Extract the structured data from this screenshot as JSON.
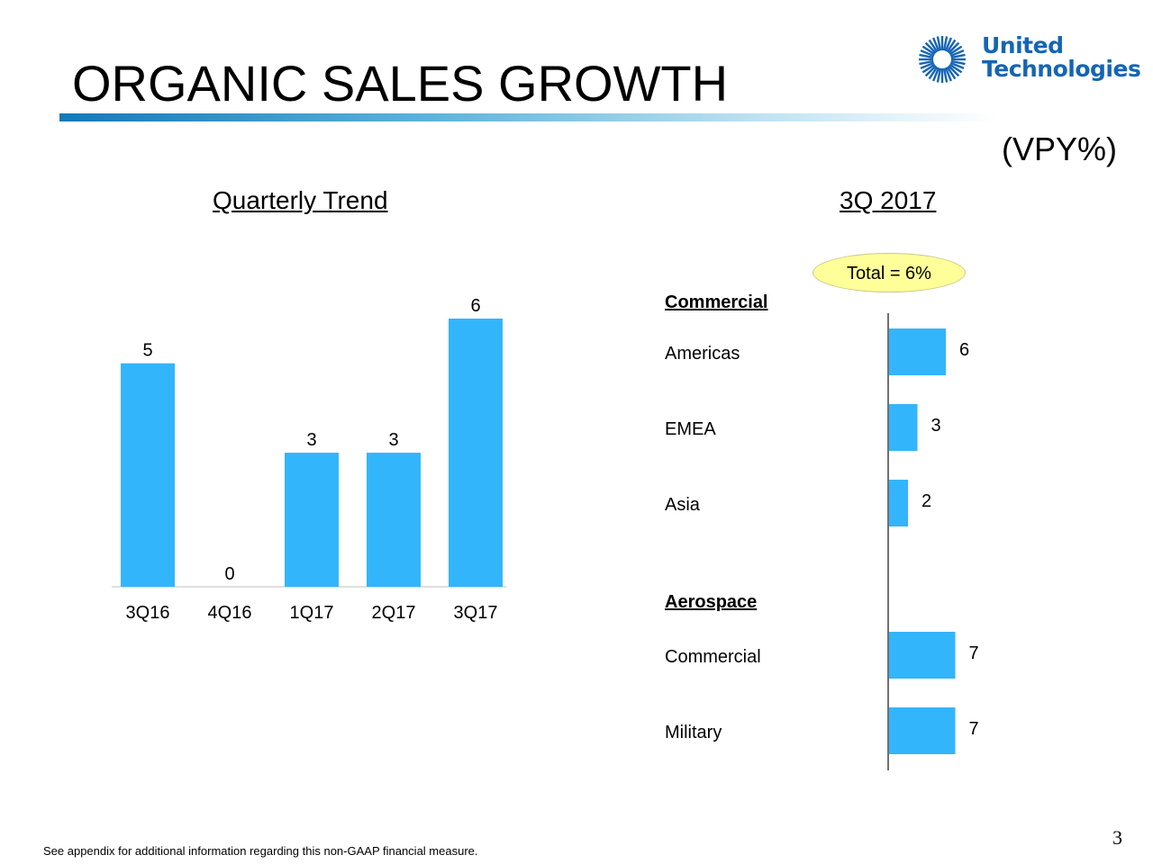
{
  "slide": {
    "title": "ORGANIC SALES GROWTH",
    "unit_label": "(VPY%)",
    "footnote": "See appendix for additional information regarding this non-GAAP financial measure.",
    "page_number": "3",
    "logo": {
      "line1": "United",
      "line2": "Technologies",
      "icon": "ut-sunburst-logo",
      "color": "#1565b4"
    },
    "accent_color": "#33b5fb"
  },
  "chart_data": [
    {
      "type": "bar",
      "title": "Quarterly Trend",
      "categories": [
        "3Q16",
        "4Q16",
        "1Q17",
        "2Q17",
        "3Q17"
      ],
      "values": [
        5,
        0,
        3,
        3,
        6
      ],
      "ylim": [
        0,
        6
      ],
      "grid": false,
      "bar_color": "#33b5fb"
    },
    {
      "type": "bar",
      "orientation": "horizontal",
      "title": "3Q 2017",
      "annotation": "Total = 6%",
      "groups": [
        {
          "name": "Commercial",
          "items": [
            {
              "label": "Americas",
              "value": 6
            },
            {
              "label": "EMEA",
              "value": 3
            },
            {
              "label": "Asia",
              "value": 2
            }
          ]
        },
        {
          "name": "Aerospace",
          "items": [
            {
              "label": "Commercial",
              "value": 7
            },
            {
              "label": "Military",
              "value": 7
            }
          ]
        }
      ],
      "xlim": [
        0,
        7
      ],
      "bar_color": "#33b5fb"
    }
  ]
}
